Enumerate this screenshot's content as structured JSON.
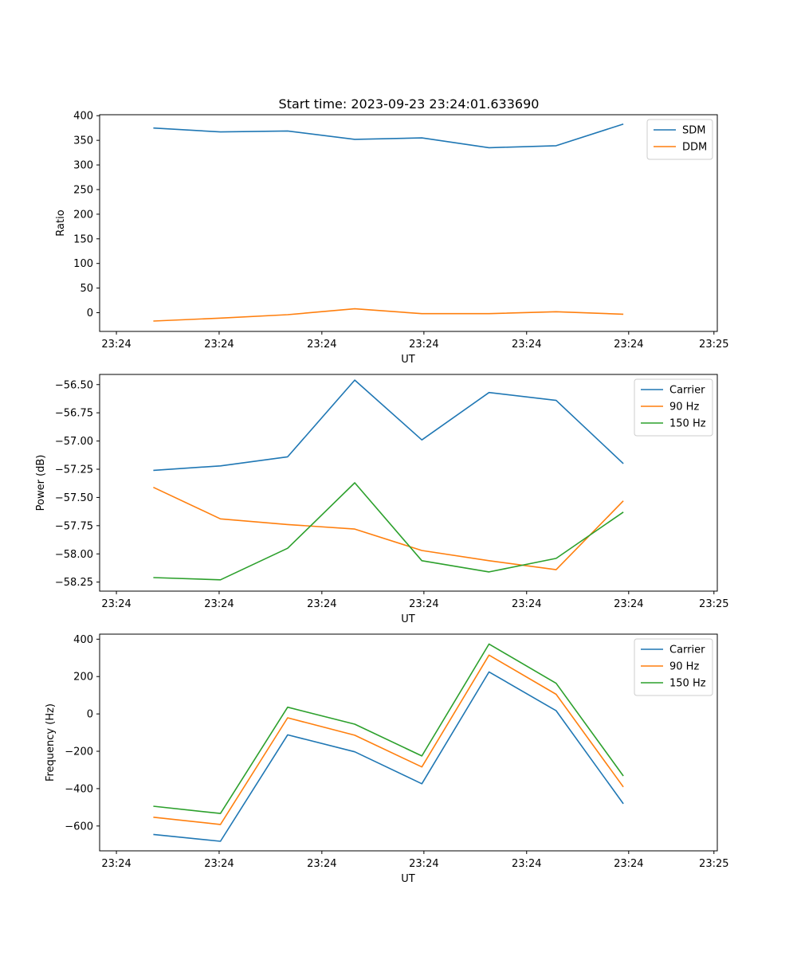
{
  "figure": {
    "title": "Start time: 2023-09-23 23:24:01.633690"
  },
  "colors": {
    "blue": "#1f77b4",
    "orange": "#ff7f0e",
    "green": "#2ca02c"
  },
  "chart_data": [
    {
      "type": "line",
      "title": "Start time: 2023-09-23 23:24:01.633690",
      "xlabel": "UT",
      "ylabel": "Ratio",
      "x": [
        1,
        2,
        3,
        4,
        5,
        6,
        7,
        8
      ],
      "xlim": [
        0.2,
        9.4
      ],
      "x_ticks": [
        {
          "value": 0.45,
          "label": "23:24"
        },
        {
          "value": 1.98,
          "label": "23:24"
        },
        {
          "value": 3.51,
          "label": "23:24"
        },
        {
          "value": 5.03,
          "label": "23:24"
        },
        {
          "value": 6.56,
          "label": "23:24"
        },
        {
          "value": 8.08,
          "label": "23:24"
        },
        {
          "value": 9.35,
          "label": "23:25"
        }
      ],
      "ylim": [
        -38,
        402
      ],
      "y_ticks": [
        {
          "value": 400,
          "label": "400"
        },
        {
          "value": 350,
          "label": "350"
        },
        {
          "value": 300,
          "label": "300"
        },
        {
          "value": 250,
          "label": "250"
        },
        {
          "value": 200,
          "label": "200"
        },
        {
          "value": 150,
          "label": "150"
        },
        {
          "value": 100,
          "label": "100"
        },
        {
          "value": 50,
          "label": "50"
        },
        {
          "value": 0,
          "label": "0"
        }
      ],
      "legend_position": "top-right",
      "series": [
        {
          "name": "SDM",
          "color": "#1f77b4",
          "values": [
            375,
            367,
            369,
            352,
            355,
            335,
            339,
            383
          ]
        },
        {
          "name": "DDM",
          "color": "#ff7f0e",
          "values": [
            -17,
            -11,
            -4,
            8,
            -2,
            -2,
            2,
            -3
          ]
        }
      ]
    },
    {
      "type": "line",
      "xlabel": "UT",
      "ylabel": "Power (dB)",
      "x": [
        1,
        2,
        3,
        4,
        5,
        6,
        7,
        8
      ],
      "xlim": [
        0.2,
        9.4
      ],
      "x_ticks": [
        {
          "value": 0.45,
          "label": "23:24"
        },
        {
          "value": 1.98,
          "label": "23:24"
        },
        {
          "value": 3.51,
          "label": "23:24"
        },
        {
          "value": 5.03,
          "label": "23:24"
        },
        {
          "value": 6.56,
          "label": "23:24"
        },
        {
          "value": 8.08,
          "label": "23:24"
        },
        {
          "value": 9.35,
          "label": "23:25"
        }
      ],
      "ylim": [
        -58.33,
        -56.41
      ],
      "y_ticks": [
        {
          "value": -56.5,
          "label": "−56.50"
        },
        {
          "value": -56.75,
          "label": "−56.75"
        },
        {
          "value": -57.0,
          "label": "−57.00"
        },
        {
          "value": -57.25,
          "label": "−57.25"
        },
        {
          "value": -57.5,
          "label": "−57.50"
        },
        {
          "value": -57.75,
          "label": "−57.75"
        },
        {
          "value": -58.0,
          "label": "−58.00"
        },
        {
          "value": -58.25,
          "label": "−58.25"
        }
      ],
      "legend_position": "top-right",
      "series": [
        {
          "name": "Carrier",
          "color": "#1f77b4",
          "values": [
            -57.26,
            -57.22,
            -57.14,
            -56.46,
            -56.99,
            -56.57,
            -56.64,
            -57.2
          ]
        },
        {
          "name": "90 Hz",
          "color": "#ff7f0e",
          "values": [
            -57.41,
            -57.69,
            -57.74,
            -57.78,
            -57.97,
            -58.06,
            -58.14,
            -57.53
          ]
        },
        {
          "name": "150 Hz",
          "color": "#2ca02c",
          "values": [
            -58.21,
            -58.23,
            -57.95,
            -57.37,
            -58.06,
            -58.16,
            -58.04,
            -57.63
          ]
        }
      ]
    },
    {
      "type": "line",
      "xlabel": "UT",
      "ylabel": "Frequency (Hz)",
      "x": [
        1,
        2,
        3,
        4,
        5,
        6,
        7,
        8
      ],
      "xlim": [
        0.2,
        9.4
      ],
      "x_ticks": [
        {
          "value": 0.45,
          "label": "23:24"
        },
        {
          "value": 1.98,
          "label": "23:24"
        },
        {
          "value": 3.51,
          "label": "23:24"
        },
        {
          "value": 5.03,
          "label": "23:24"
        },
        {
          "value": 6.56,
          "label": "23:24"
        },
        {
          "value": 8.08,
          "label": "23:24"
        },
        {
          "value": 9.35,
          "label": "23:25"
        }
      ],
      "ylim": [
        -733,
        427
      ],
      "y_ticks": [
        {
          "value": 400,
          "label": "400"
        },
        {
          "value": 200,
          "label": "200"
        },
        {
          "value": 0,
          "label": "0"
        },
        {
          "value": -200,
          "label": "−200"
        },
        {
          "value": -400,
          "label": "−400"
        },
        {
          "value": -600,
          "label": "−600"
        }
      ],
      "legend_position": "top-right",
      "series": [
        {
          "name": "Carrier",
          "color": "#1f77b4",
          "values": [
            -645,
            -682,
            -112,
            -203,
            -374,
            225,
            17,
            -481
          ]
        },
        {
          "name": "90 Hz",
          "color": "#ff7f0e",
          "values": [
            -553,
            -592,
            -21,
            -114,
            -284,
            315,
            105,
            -391
          ]
        },
        {
          "name": "150 Hz",
          "color": "#2ca02c",
          "values": [
            -494,
            -533,
            36,
            -55,
            -225,
            374,
            164,
            -332
          ]
        }
      ]
    }
  ]
}
